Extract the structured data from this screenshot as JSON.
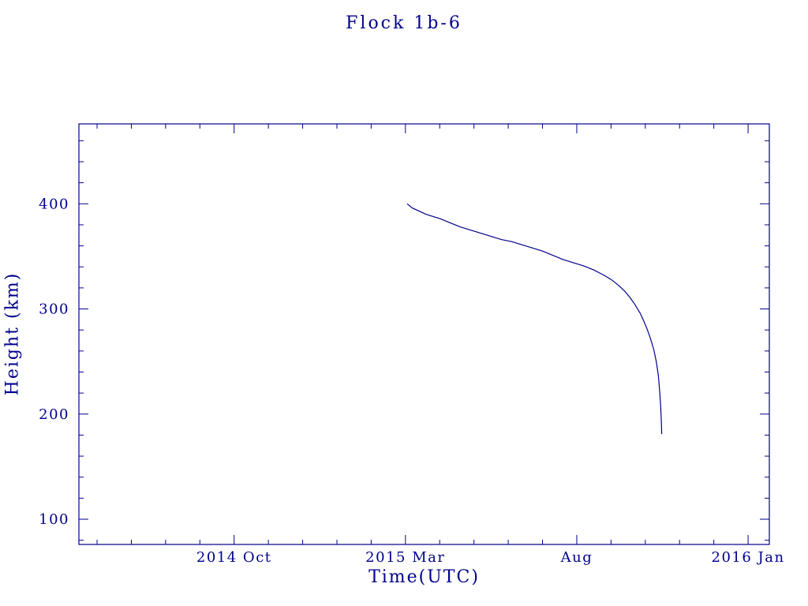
{
  "colors": {
    "line": "#00008b",
    "text": "#00008b",
    "frame": "#00008b",
    "background": "#ffffff"
  },
  "chart_data": {
    "type": "line",
    "title": "Flock 1b-6",
    "xlabel": "Time(UTC)",
    "ylabel": "Height (km)",
    "x_unit": "months since 2014-01-01",
    "xlim": [
      4.47,
      24.62
    ],
    "ylim": [
      76,
      476
    ],
    "grid": false,
    "legend": "none",
    "x_major_ticks": [
      {
        "pos": 9,
        "label": "2014 Oct"
      },
      {
        "pos": 14,
        "label": "2015 Mar"
      },
      {
        "pos": 19,
        "label": "Aug"
      },
      {
        "pos": 24,
        "label": "2016 Jan"
      }
    ],
    "x_minor_step": 1,
    "y_major_ticks": [
      {
        "pos": 100,
        "label": "100"
      },
      {
        "pos": 200,
        "label": "200"
      },
      {
        "pos": 300,
        "label": "300"
      },
      {
        "pos": 400,
        "label": "400"
      }
    ],
    "y_minor_step": 20,
    "series": [
      {
        "name": "Flock 1b-6",
        "points": [
          [
            14.05,
            400
          ],
          [
            14.2,
            396
          ],
          [
            14.4,
            393
          ],
          [
            14.6,
            390
          ],
          [
            14.8,
            388
          ],
          [
            15.0,
            386
          ],
          [
            15.3,
            382
          ],
          [
            15.6,
            378
          ],
          [
            15.9,
            375
          ],
          [
            16.2,
            372
          ],
          [
            16.5,
            369
          ],
          [
            16.8,
            366
          ],
          [
            17.1,
            364
          ],
          [
            17.4,
            361
          ],
          [
            17.7,
            358
          ],
          [
            18.0,
            355
          ],
          [
            18.3,
            351
          ],
          [
            18.6,
            347
          ],
          [
            18.9,
            344
          ],
          [
            19.2,
            341
          ],
          [
            19.5,
            337
          ],
          [
            19.8,
            332
          ],
          [
            20.0,
            328
          ],
          [
            20.2,
            323
          ],
          [
            20.4,
            317
          ],
          [
            20.55,
            311
          ],
          [
            20.7,
            304
          ],
          [
            20.85,
            296
          ],
          [
            20.95,
            289
          ],
          [
            21.05,
            281
          ],
          [
            21.15,
            272
          ],
          [
            21.25,
            261
          ],
          [
            21.32,
            250
          ],
          [
            21.38,
            237
          ],
          [
            21.42,
            222
          ],
          [
            21.45,
            207
          ],
          [
            21.47,
            192
          ],
          [
            21.48,
            181
          ]
        ]
      }
    ]
  }
}
